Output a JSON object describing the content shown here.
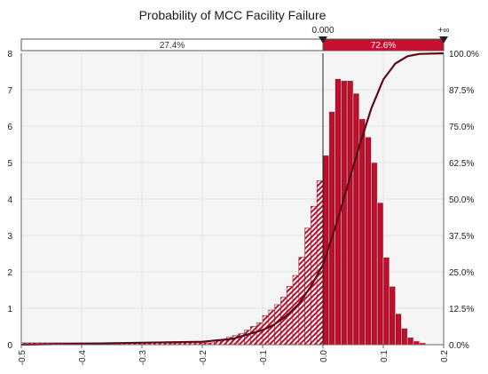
{
  "chart_data": {
    "type": "bar",
    "title": "Probability of MCC Facility Failure",
    "xlabel": "",
    "ylabel": "",
    "xlim": [
      -0.5,
      0.2
    ],
    "ylim": [
      0,
      8
    ],
    "y2lim": [
      0,
      100
    ],
    "x_ticks": [
      "-0.5",
      "-0.4",
      "-0.3",
      "-0.2",
      "-0.1",
      "0.0",
      "0.1",
      "0.2"
    ],
    "y_ticks": [
      "0",
      "1",
      "2",
      "3",
      "4",
      "5",
      "6",
      "7",
      "8"
    ],
    "y2_ticks": [
      "0.0%",
      "12.5%",
      "25.0%",
      "37.5%",
      "50.0%",
      "62.5%",
      "75.0%",
      "87.5%",
      "100.0%"
    ],
    "bin_width": 0.01,
    "bins_left_edges": [
      -0.5,
      -0.49,
      -0.48,
      -0.47,
      -0.46,
      -0.45,
      -0.44,
      -0.43,
      -0.42,
      -0.41,
      -0.4,
      -0.39,
      -0.38,
      -0.37,
      -0.36,
      -0.35,
      -0.34,
      -0.33,
      -0.32,
      -0.31,
      -0.3,
      -0.29,
      -0.28,
      -0.27,
      -0.26,
      -0.25,
      -0.24,
      -0.23,
      -0.22,
      -0.21,
      -0.2,
      -0.19,
      -0.18,
      -0.17,
      -0.16,
      -0.15,
      -0.14,
      -0.13,
      -0.12,
      -0.11,
      -0.1,
      -0.09,
      -0.08,
      -0.07,
      -0.06,
      -0.05,
      -0.04,
      -0.03,
      -0.02,
      -0.01,
      0.0,
      0.01,
      0.02,
      0.03,
      0.04,
      0.05,
      0.06,
      0.07,
      0.08,
      0.09,
      0.1,
      0.11,
      0.12,
      0.13,
      0.14,
      0.15,
      0.16,
      0.17,
      0.18,
      0.19
    ],
    "density": [
      0.05,
      0.05,
      0.05,
      0.05,
      0.05,
      0.05,
      0.05,
      0.05,
      0.05,
      0.05,
      0.05,
      0.05,
      0.05,
      0.05,
      0.05,
      0.05,
      0.05,
      0.05,
      0.05,
      0.05,
      0.05,
      0.05,
      0.05,
      0.05,
      0.05,
      0.05,
      0.05,
      0.05,
      0.05,
      0.05,
      0.05,
      0.05,
      0.1,
      0.12,
      0.2,
      0.25,
      0.3,
      0.4,
      0.5,
      0.6,
      0.8,
      0.95,
      1.1,
      1.3,
      1.6,
      1.9,
      2.4,
      3.2,
      3.8,
      4.5,
      5.2,
      6.4,
      7.3,
      7.25,
      7.25,
      6.9,
      6.2,
      5.7,
      5.0,
      3.9,
      2.4,
      1.6,
      0.85,
      0.45,
      0.2,
      0.1,
      0.05,
      0.0,
      0.0,
      0.0
    ],
    "cumulative_percent": {
      "x": [
        -0.5,
        -0.2,
        -0.15,
        -0.1,
        -0.08,
        -0.06,
        -0.04,
        -0.02,
        0.0,
        0.02,
        0.04,
        0.06,
        0.08,
        0.1,
        0.12,
        0.14,
        0.16,
        0.2
      ],
      "y": [
        0,
        1,
        2,
        5,
        7,
        10,
        14,
        20,
        27.4,
        40,
        54,
        68,
        81,
        91,
        96.5,
        99,
        99.8,
        100
      ]
    },
    "annotation_band": {
      "left_label": "27.4%",
      "right_label": "72.6%",
      "split_label": "0.000",
      "end_label": "+∞",
      "split_x": 0.0
    },
    "grid": true,
    "colors": {
      "bar_fill": "#b3102c",
      "bar_stroke": "#e8d0d6",
      "hatch": "#b3102c",
      "curve": "#5c0a18",
      "band_right": "#c8102e",
      "grid": "#e3e3e3",
      "plot_bg": "#f5f5f5"
    }
  }
}
